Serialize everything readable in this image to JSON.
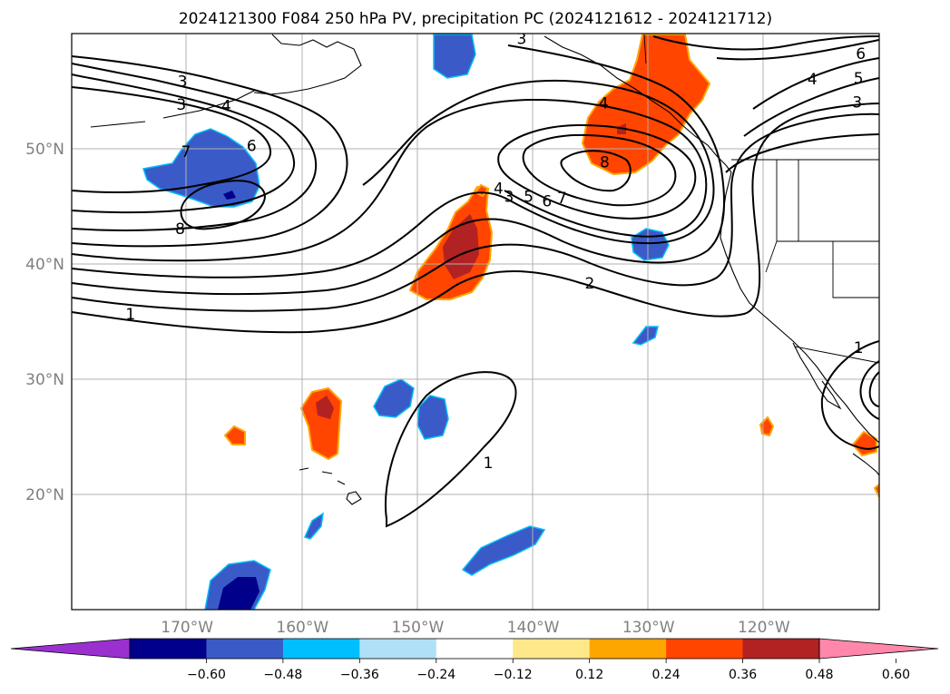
{
  "title": "2024121300 F084 250 hPa PV, precipitation PC (2024121612 - 2024121712)",
  "chart_data": {
    "type": "contour map",
    "title": "2024121300 F084 250 hPa PV, precipitation PC (2024121612 - 2024121712)",
    "x_axis": {
      "ticks": [
        {
          "value": -170,
          "label": "170°W"
        },
        {
          "value": -160,
          "label": "160°W"
        },
        {
          "value": -150,
          "label": "150°W"
        },
        {
          "value": -140,
          "label": "140°W"
        },
        {
          "value": -130,
          "label": "130°W"
        },
        {
          "value": -120,
          "label": "120°W"
        }
      ],
      "range": [
        -180,
        -110
      ]
    },
    "y_axis": {
      "ticks": [
        {
          "value": 20,
          "label": "20°N"
        },
        {
          "value": 30,
          "label": "30°N"
        },
        {
          "value": 40,
          "label": "40°N"
        },
        {
          "value": 50,
          "label": "50°N"
        }
      ],
      "range": [
        10,
        60
      ]
    },
    "grid": true,
    "colorbar": {
      "orientation": "horizontal",
      "extend": "both",
      "levels": [
        -0.6,
        -0.48,
        -0.36,
        -0.24,
        -0.12,
        0.12,
        0.24,
        0.36,
        0.48,
        0.6
      ],
      "tick_labels": [
        "−0.60",
        "−0.48",
        "−0.36",
        "−0.24",
        "−0.12",
        "0.12",
        "0.24",
        "0.36",
        "0.48",
        "0.60"
      ],
      "colors": [
        "#9b30d0",
        "#00008b",
        "#3a5bc7",
        "#00bfff",
        "#b0e0f8",
        "#ffffff",
        "#ffe88a",
        "#ffa500",
        "#ff4500",
        "#b22222",
        "#ff88aa"
      ]
    },
    "contour_labels": [
      {
        "text": "1",
        "lon": -174.9,
        "lat": 35.5
      },
      {
        "text": "3",
        "lon": -170.4,
        "lat": 55.7
      },
      {
        "text": "3",
        "lon": -170.5,
        "lat": 53.7
      },
      {
        "text": "4",
        "lon": -166.6,
        "lat": 53.6
      },
      {
        "text": "6",
        "lon": -164.4,
        "lat": 50.1
      },
      {
        "text": "7",
        "lon": -170.1,
        "lat": 49.6
      },
      {
        "text": "8",
        "lon": -170.6,
        "lat": 42.9
      },
      {
        "text": "3",
        "lon": -141.0,
        "lat": 59.4
      },
      {
        "text": "4",
        "lon": -143.0,
        "lat": 46.4
      },
      {
        "text": "3",
        "lon": -142.1,
        "lat": 45.7
      },
      {
        "text": "5",
        "lon": -140.4,
        "lat": 45.7
      },
      {
        "text": "6",
        "lon": -138.8,
        "lat": 45.3
      },
      {
        "text": "7",
        "lon": -137.5,
        "lat": 45.6
      },
      {
        "text": "8",
        "lon": -133.8,
        "lat": 48.7
      },
      {
        "text": "4",
        "lon": -133.9,
        "lat": 53.8
      },
      {
        "text": "2",
        "lon": -135.1,
        "lat": 38.2
      },
      {
        "text": "1",
        "lon": -143.9,
        "lat": 22.6
      },
      {
        "text": "6",
        "lon": -111.6,
        "lat": 58.1
      },
      {
        "text": "5",
        "lon": -111.8,
        "lat": 56.0
      },
      {
        "text": "4",
        "lon": -115.8,
        "lat": 55.9
      },
      {
        "text": "3",
        "lon": -111.9,
        "lat": 53.9
      },
      {
        "text": "1",
        "lon": -111.8,
        "lat": 32.6
      }
    ]
  }
}
